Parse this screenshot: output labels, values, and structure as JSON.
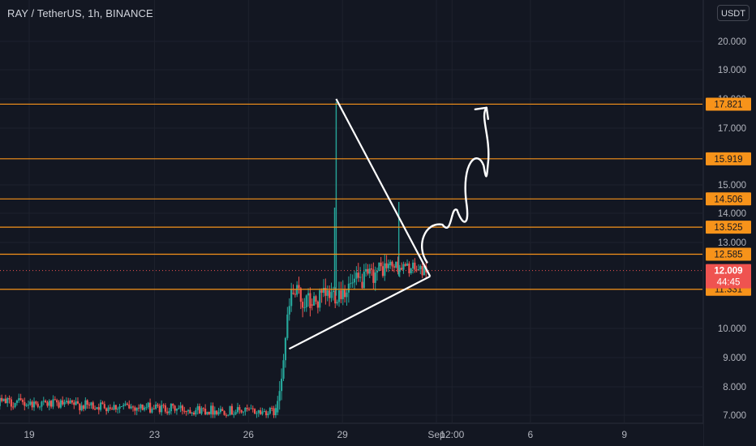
{
  "header": {
    "title": "RAY / TetherUS, 1h, BINANCE",
    "currency": "USDT"
  },
  "colors": {
    "background": "#131722",
    "grid": "#1e222d",
    "up": "#26a69a",
    "down": "#ef5350",
    "level": "#f7931a",
    "level_label_bg": "#f7931a",
    "current_label_bg": "#ef5350",
    "drawing": "#ffffff",
    "text": "#b2b5be"
  },
  "chart_data": {
    "type": "candlestick",
    "title": "RAY / TetherUS, 1h, BINANCE",
    "ylim": [
      6.8,
      20.5
    ],
    "y_ticks": [
      "20.000",
      "19.000",
      "18.000",
      "17.000",
      "15.000",
      "14.000",
      "13.000",
      "10.000",
      "9.000",
      "8.000",
      "7.000"
    ],
    "y_tick_values": [
      20,
      19,
      18,
      17,
      15,
      14,
      13,
      10,
      9,
      8,
      7
    ],
    "x_ticks": [
      "19",
      "23",
      "26",
      "29",
      "Sep",
      "12:00",
      "6",
      "9"
    ],
    "levels": [
      {
        "value": 17.821,
        "label": "17.821"
      },
      {
        "value": 15.919,
        "label": "15.919"
      },
      {
        "value": 14.506,
        "label": "14.506"
      },
      {
        "value": 13.525,
        "label": "13.525"
      },
      {
        "value": 12.585,
        "label": "12.585"
      },
      {
        "value": 11.331,
        "label": "11.331"
      }
    ],
    "current_price": {
      "value": 12.009,
      "label": "12.009",
      "countdown": "44:45"
    },
    "drawings": {
      "triangle_upper_start": {
        "day": 28.8,
        "price": 18.0
      },
      "triangle_apex": {
        "day": 31.8,
        "price": 11.8
      },
      "triangle_lower_start": {
        "day": 27.3,
        "price": 9.3
      },
      "projection_path": [
        {
          "day": 31.7,
          "price": 12.3
        },
        {
          "day": 32.4,
          "price": 14.0
        },
        {
          "day": 32.7,
          "price": 14.3
        },
        {
          "day": 33.2,
          "price": 15.5
        },
        {
          "day": 33.4,
          "price": 15.6
        },
        {
          "day": 33.6,
          "price": 17.7
        }
      ]
    },
    "segments": [
      {
        "from_day": 17.0,
        "to_day": 26.9,
        "start": 7.5,
        "end": 7.1,
        "low": 6.9,
        "high": 8.6,
        "vol": 0.18
      },
      {
        "from_day": 26.9,
        "to_day": 27.4,
        "start": 7.1,
        "end": 11.2,
        "low": 7.0,
        "high": 11.9,
        "vol": 0.4
      },
      {
        "from_day": 27.4,
        "to_day": 28.0,
        "start": 11.2,
        "end": 10.8,
        "low": 9.6,
        "high": 12.8,
        "vol": 0.45
      },
      {
        "from_day": 28.0,
        "to_day": 29.6,
        "start": 10.8,
        "end": 11.6,
        "low": 10.5,
        "high": 13.0,
        "vol": 0.4
      },
      {
        "from_day": 29.6,
        "to_day": 30.5,
        "start": 11.6,
        "end": 12.2,
        "low": 10.6,
        "high": 12.9,
        "vol": 0.35
      },
      {
        "from_day": 30.5,
        "to_day": 31.7,
        "start": 12.2,
        "end": 12.009,
        "low": 11.4,
        "high": 12.6,
        "vol": 0.22
      }
    ],
    "spikes": [
      {
        "day": 28.8,
        "high": 17.9,
        "low": 11.1
      },
      {
        "day": 28.75,
        "high": 14.2,
        "low": 11.3
      },
      {
        "day": 30.8,
        "high": 14.4,
        "low": 11.8
      }
    ]
  }
}
